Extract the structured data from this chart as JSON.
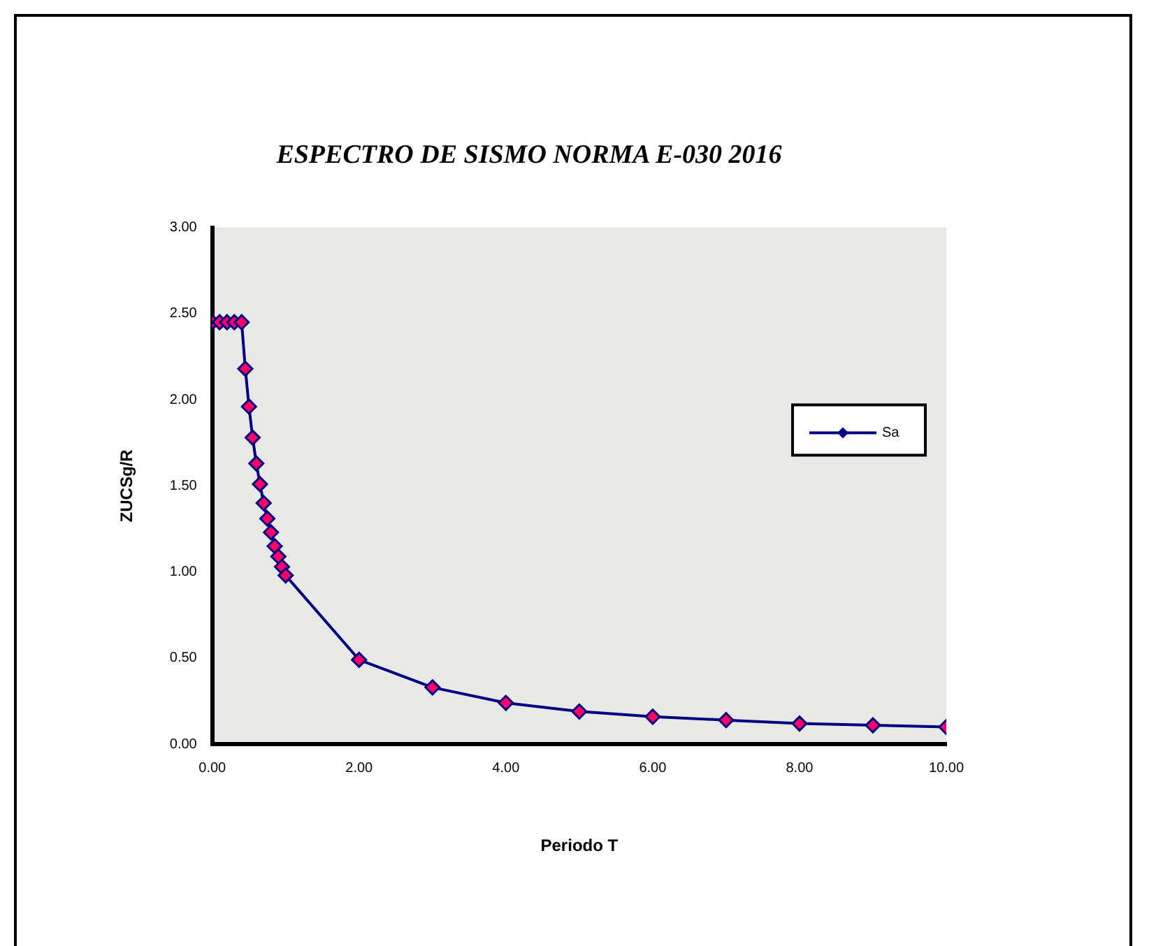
{
  "chart_data": {
    "type": "line",
    "title": "ESPECTRO DE SISMO NORMA E-030 2016",
    "xlabel": "Periodo T",
    "ylabel": "ZUCSg/R",
    "x": [
      0,
      0.1,
      0.2,
      0.3,
      0.4,
      0.45,
      0.5,
      0.55,
      0.6,
      0.65,
      0.7,
      0.75,
      0.8,
      0.85,
      0.9,
      0.95,
      1,
      2,
      3,
      4,
      5,
      6,
      7,
      8,
      9,
      10
    ],
    "series": [
      {
        "name": "Sa",
        "color": "#000080",
        "values": [
          2.45,
          2.45,
          2.45,
          2.45,
          2.45,
          2.18,
          1.96,
          1.78,
          1.63,
          1.51,
          1.4,
          1.31,
          1.23,
          1.15,
          1.09,
          1.03,
          0.98,
          0.49,
          0.33,
          0.24,
          0.19,
          0.16,
          0.14,
          0.12,
          0.11,
          0.1
        ]
      }
    ],
    "xlim": [
      0,
      10
    ],
    "xticks": [
      {
        "value": 0,
        "label": "0.00"
      },
      {
        "value": 2,
        "label": "2.00"
      },
      {
        "value": 4,
        "label": "4.00"
      },
      {
        "value": 6,
        "label": "6.00"
      },
      {
        "value": 8,
        "label": "8.00"
      },
      {
        "value": 10,
        "label": "10.00"
      }
    ],
    "ylim": [
      0,
      3
    ],
    "yticks": [
      {
        "value": 0,
        "label": "0.00"
      },
      {
        "value": 0.5,
        "label": "0.50"
      },
      {
        "value": 1,
        "label": "1.00"
      },
      {
        "value": 1.5,
        "label": "1.50"
      },
      {
        "value": 2,
        "label": "2.00"
      },
      {
        "value": 2.5,
        "label": "2.50"
      },
      {
        "value": 3,
        "label": "3.00"
      }
    ],
    "grid": false,
    "legend": "right",
    "marker": "diamond",
    "line_style": "solid"
  }
}
